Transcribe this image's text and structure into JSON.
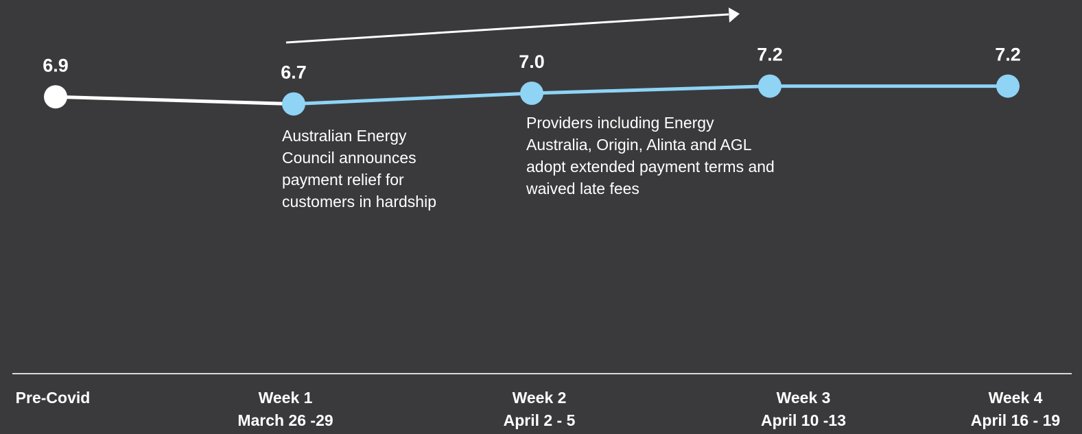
{
  "chart_data": {
    "type": "line",
    "categories": [
      "Pre-Covid",
      "Week 1",
      "Week 2",
      "Week 3",
      "Week 4"
    ],
    "category_dates": [
      null,
      "March 26 -29",
      "April 2 - 5",
      "April 10 -13",
      "April 16 - 19"
    ],
    "values": [
      6.9,
      6.7,
      7.0,
      7.2,
      7.2
    ],
    "value_labels": [
      "6.9",
      "6.7",
      "7.0",
      "7.2",
      "7.2"
    ],
    "colors": [
      "#ffffff",
      "#8fd3f5",
      "#8fd3f5",
      "#8fd3f5",
      "#8fd3f5"
    ],
    "annotations": [
      {
        "lines": [
          "Australian Energy",
          "Council announces",
          "payment relief for",
          "customers in hardship"
        ]
      },
      {
        "lines": [
          "Providers including Energy",
          "Australia, Origin, Alinta and AGL",
          "adopt extended payment terms and",
          "waived late fees"
        ]
      }
    ]
  }
}
